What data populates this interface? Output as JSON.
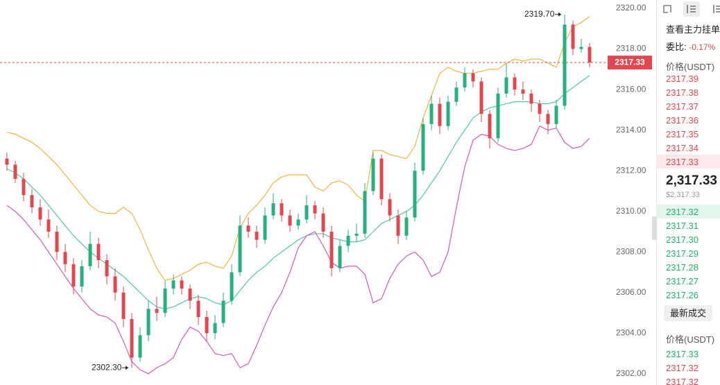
{
  "chart": {
    "ylim": [
      2301.45,
      2320.41
    ],
    "yticks": [
      {
        "value": 2320,
        "label": "2320.00"
      },
      {
        "value": 2318,
        "label": "2318.00"
      },
      {
        "value": 2316,
        "label": "2316.00"
      },
      {
        "value": 2314,
        "label": "2314.00"
      },
      {
        "value": 2312,
        "label": "2312.00"
      },
      {
        "value": 2310,
        "label": "2310.00"
      },
      {
        "value": 2308,
        "label": "2308.00"
      },
      {
        "value": 2306,
        "label": "2306.00"
      },
      {
        "value": 2304,
        "label": "2304.00"
      },
      {
        "value": 2302,
        "label": "2302.00"
      }
    ],
    "last_price": {
      "value": 2317.33,
      "label": "2317.33"
    },
    "high_label": "2319.70",
    "low_label": "2302.30",
    "candles": [
      [
        2312.6,
        2312.9,
        2312.0,
        2312.3
      ],
      [
        2312.3,
        2312.5,
        2311.4,
        2311.6
      ],
      [
        2311.6,
        2311.9,
        2310.5,
        2310.8
      ],
      [
        2310.8,
        2311.1,
        2309.9,
        2310.2
      ],
      [
        2310.2,
        2310.6,
        2309.3,
        2309.6
      ],
      [
        2309.6,
        2310.1,
        2308.7,
        2309.0
      ],
      [
        2309.0,
        2309.3,
        2307.6,
        2308.0
      ],
      [
        2308.0,
        2308.4,
        2307.0,
        2307.4
      ],
      [
        2307.4,
        2307.7,
        2305.9,
        2306.3
      ],
      [
        2306.3,
        2307.6,
        2306.0,
        2307.3
      ],
      [
        2307.3,
        2309.0,
        2307.1,
        2308.4
      ],
      [
        2308.4,
        2308.7,
        2307.2,
        2307.6
      ],
      [
        2307.6,
        2307.9,
        2306.4,
        2306.8
      ],
      [
        2306.8,
        2307.2,
        2305.6,
        2306.0
      ],
      [
        2306.0,
        2306.3,
        2304.3,
        2304.7
      ],
      [
        2304.7,
        2305.0,
        2302.3,
        2302.8
      ],
      [
        2302.8,
        2304.3,
        2302.6,
        2303.9
      ],
      [
        2303.9,
        2305.6,
        2303.6,
        2305.2
      ],
      [
        2305.2,
        2305.8,
        2304.6,
        2305.0
      ],
      [
        2305.0,
        2306.6,
        2304.8,
        2306.2
      ],
      [
        2306.2,
        2306.9,
        2305.9,
        2306.6
      ],
      [
        2306.6,
        2306.8,
        2305.9,
        2306.2
      ],
      [
        2306.2,
        2306.4,
        2305.2,
        2305.6
      ],
      [
        2305.6,
        2305.9,
        2304.4,
        2304.8
      ],
      [
        2304.8,
        2305.1,
        2303.6,
        2304.0
      ],
      [
        2304.0,
        2304.9,
        2303.7,
        2304.5
      ],
      [
        2304.5,
        2306.0,
        2304.3,
        2305.6
      ],
      [
        2305.6,
        2307.4,
        2305.4,
        2307.0
      ],
      [
        2307.0,
        2309.8,
        2306.8,
        2309.3
      ],
      [
        2309.3,
        2309.7,
        2308.7,
        2309.0
      ],
      [
        2309.0,
        2309.3,
        2308.2,
        2308.6
      ],
      [
        2308.6,
        2310.2,
        2308.4,
        2309.8
      ],
      [
        2309.8,
        2310.9,
        2309.6,
        2310.4
      ],
      [
        2310.4,
        2310.6,
        2309.5,
        2309.8
      ],
      [
        2309.8,
        2310.1,
        2309.0,
        2309.3
      ],
      [
        2309.3,
        2309.9,
        2309.1,
        2309.6
      ],
      [
        2309.6,
        2310.8,
        2309.4,
        2310.3
      ],
      [
        2310.3,
        2310.5,
        2309.6,
        2309.9
      ],
      [
        2309.9,
        2310.2,
        2308.7,
        2309.0
      ],
      [
        2309.0,
        2309.3,
        2306.8,
        2307.2
      ],
      [
        2307.2,
        2308.6,
        2307.0,
        2308.3
      ],
      [
        2308.3,
        2309.1,
        2308.0,
        2308.8
      ],
      [
        2308.8,
        2309.4,
        2308.5,
        2308.9
      ],
      [
        2308.9,
        2311.4,
        2308.7,
        2311.0
      ],
      [
        2311.0,
        2312.9,
        2310.8,
        2312.6
      ],
      [
        2312.6,
        2312.8,
        2310.3,
        2310.6
      ],
      [
        2310.6,
        2310.9,
        2309.5,
        2309.8
      ],
      [
        2309.8,
        2310.1,
        2308.4,
        2308.8
      ],
      [
        2308.8,
        2310.0,
        2308.6,
        2309.7
      ],
      [
        2309.7,
        2312.4,
        2309.5,
        2312.0
      ],
      [
        2312.0,
        2314.6,
        2311.8,
        2314.3
      ],
      [
        2314.3,
        2315.7,
        2314.0,
        2315.3
      ],
      [
        2315.3,
        2315.6,
        2313.8,
        2314.2
      ],
      [
        2314.2,
        2315.7,
        2314.0,
        2315.4
      ],
      [
        2315.4,
        2316.4,
        2315.2,
        2316.1
      ],
      [
        2316.1,
        2317.1,
        2315.9,
        2316.8
      ],
      [
        2316.8,
        2317.0,
        2316.1,
        2316.4
      ],
      [
        2316.4,
        2316.6,
        2314.4,
        2314.8
      ],
      [
        2314.8,
        2315.0,
        2313.1,
        2313.6
      ],
      [
        2313.6,
        2316.1,
        2313.4,
        2315.8
      ],
      [
        2315.8,
        2317.3,
        2315.6,
        2316.6
      ],
      [
        2316.6,
        2316.8,
        2315.7,
        2316.0
      ],
      [
        2316.0,
        2316.4,
        2315.5,
        2315.8
      ],
      [
        2315.8,
        2316.0,
        2314.9,
        2315.3
      ],
      [
        2315.3,
        2315.5,
        2314.4,
        2314.8
      ],
      [
        2314.8,
        2315.0,
        2313.8,
        2314.3
      ],
      [
        2314.3,
        2315.5,
        2314.1,
        2315.2
      ],
      [
        2315.2,
        2319.7,
        2315.0,
        2319.2
      ],
      [
        2319.2,
        2319.4,
        2317.7,
        2318.0
      ],
      [
        2318.0,
        2318.5,
        2317.8,
        2318.1
      ],
      [
        2318.1,
        2318.3,
        2317.1,
        2317.33
      ]
    ],
    "bands": [
      {
        "color": "#f0b43c",
        "values": [
          2313.9,
          2313.8,
          2313.6,
          2313.4,
          2313.1,
          2312.7,
          2312.3,
          2311.8,
          2311.3,
          2310.8,
          2310.3,
          2310.0,
          2309.9,
          2309.9,
          2310.2,
          2309.9,
          2309.1,
          2308.1,
          2307.2,
          2306.6,
          2306.7,
          2306.9,
          2307.1,
          2307.4,
          2307.5,
          2307.3,
          2307.2,
          2307.8,
          2309.2,
          2309.9,
          2310.3,
          2310.8,
          2311.4,
          2311.7,
          2311.8,
          2311.8,
          2311.8,
          2311.2,
          2311.0,
          2311.4,
          2311.5,
          2311.3,
          2310.8,
          2310.5,
          2313.0,
          2313.0,
          2312.8,
          2312.7,
          2312.6,
          2313.2,
          2314.6,
          2315.7,
          2316.8,
          2317.1,
          2316.9,
          2316.8,
          2316.8,
          2316.9,
          2317.0,
          2317.0,
          2317.3,
          2317.5,
          2317.4,
          2317.5,
          2317.5,
          2317.3,
          2317.1,
          2318.3,
          2319.1,
          2319.3,
          2319.6
        ]
      },
      {
        "color": "#4cc9a5",
        "values": [
          2312.1,
          2311.9,
          2311.6,
          2311.2,
          2310.8,
          2310.3,
          2309.8,
          2309.3,
          2308.8,
          2308.4,
          2308.0,
          2307.7,
          2307.4,
          2307.1,
          2306.8,
          2306.4,
          2306.0,
          2305.6,
          2305.3,
          2305.2,
          2305.3,
          2305.5,
          2305.7,
          2305.8,
          2305.7,
          2305.5,
          2305.4,
          2305.6,
          2306.1,
          2306.6,
          2307.0,
          2307.3,
          2307.7,
          2308.0,
          2308.3,
          2308.6,
          2308.8,
          2308.9,
          2308.9,
          2308.7,
          2308.6,
          2308.5,
          2308.5,
          2308.6,
          2309.0,
          2309.4,
          2309.6,
          2309.8,
          2310.0,
          2310.3,
          2310.8,
          2311.4,
          2312.0,
          2312.7,
          2313.4,
          2314.0,
          2314.6,
          2314.9,
          2315.1,
          2315.2,
          2315.3,
          2315.4,
          2315.4,
          2315.4,
          2315.3,
          2315.3,
          2315.4,
          2315.8,
          2316.1,
          2316.4,
          2316.7
        ]
      },
      {
        "color": "#d05ab8",
        "values": [
          2310.3,
          2310.0,
          2309.6,
          2309.1,
          2308.6,
          2308.0,
          2307.4,
          2306.8,
          2306.2,
          2305.7,
          2305.2,
          2304.9,
          2304.8,
          2304.5,
          2303.6,
          2302.6,
          2302.2,
          2302.0,
          2302.3,
          2302.5,
          2302.8,
          2303.7,
          2304.3,
          2304.1,
          2303.6,
          2303.0,
          2302.9,
          2303.0,
          2302.3,
          2302.5,
          2303.4,
          2304.4,
          2305.3,
          2306.0,
          2307.0,
          2308.2,
          2308.8,
          2309.0,
          2308.3,
          2307.5,
          2307.2,
          2307.3,
          2307.3,
          2306.9,
          2305.5,
          2305.7,
          2306.7,
          2307.4,
          2307.8,
          2308.0,
          2307.6,
          2306.8,
          2307.0,
          2308.0,
          2310.2,
          2312.2,
          2313.5,
          2313.8,
          2313.7,
          2313.3,
          2313.1,
          2313.0,
          2313.1,
          2313.3,
          2314.2,
          2314.0,
          2314.1,
          2313.4,
          2313.1,
          2313.2,
          2313.6
        ]
      }
    ],
    "up_color": "#26b07c",
    "down_color": "#e0474e"
  },
  "orderbook": {
    "title": "查看主力挂单",
    "ratio_label": "委比:",
    "ratio": "-0.17%",
    "price_header": "价格(USDT)",
    "asks": [
      "2317.39",
      "2317.38",
      "2317.37",
      "2317.36",
      "2317.35",
      "2317.34",
      "2317.33"
    ],
    "last": "2,317.33",
    "last_usd": "$2,317.33",
    "bids": [
      "2317.32",
      "2317.31",
      "2317.30",
      "2317.29",
      "2317.28",
      "2317.27",
      "2317.26"
    ]
  },
  "trades": {
    "button": "最新成交",
    "price_header": "价格(USDT)",
    "prices": [
      "2317.33",
      "2317.32",
      "2317.32"
    ]
  }
}
